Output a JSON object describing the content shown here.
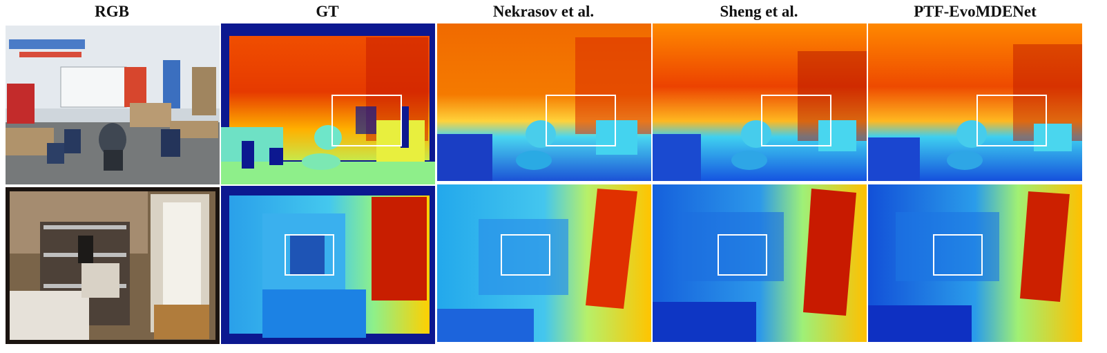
{
  "figure": {
    "columns": [
      {
        "key": "rgb",
        "title": "RGB"
      },
      {
        "key": "gt",
        "title": "GT"
      },
      {
        "key": "nekrasov",
        "title": "Nekrasov et al."
      },
      {
        "key": "sheng",
        "title": "Sheng et al."
      },
      {
        "key": "ptf",
        "title": "PTF-EvoMDENet"
      }
    ],
    "rows": [
      {
        "scene": "classroom",
        "highlight": "white rectangle on depth maps"
      },
      {
        "scene": "storage room with doorway",
        "highlight": "white rectangle on depth maps"
      }
    ],
    "colors": {
      "jet_near": "#0a1a9a",
      "jet_mid": "#22d8e8",
      "jet_far": "#c81e00",
      "highlight_box": "#ffffff"
    }
  }
}
